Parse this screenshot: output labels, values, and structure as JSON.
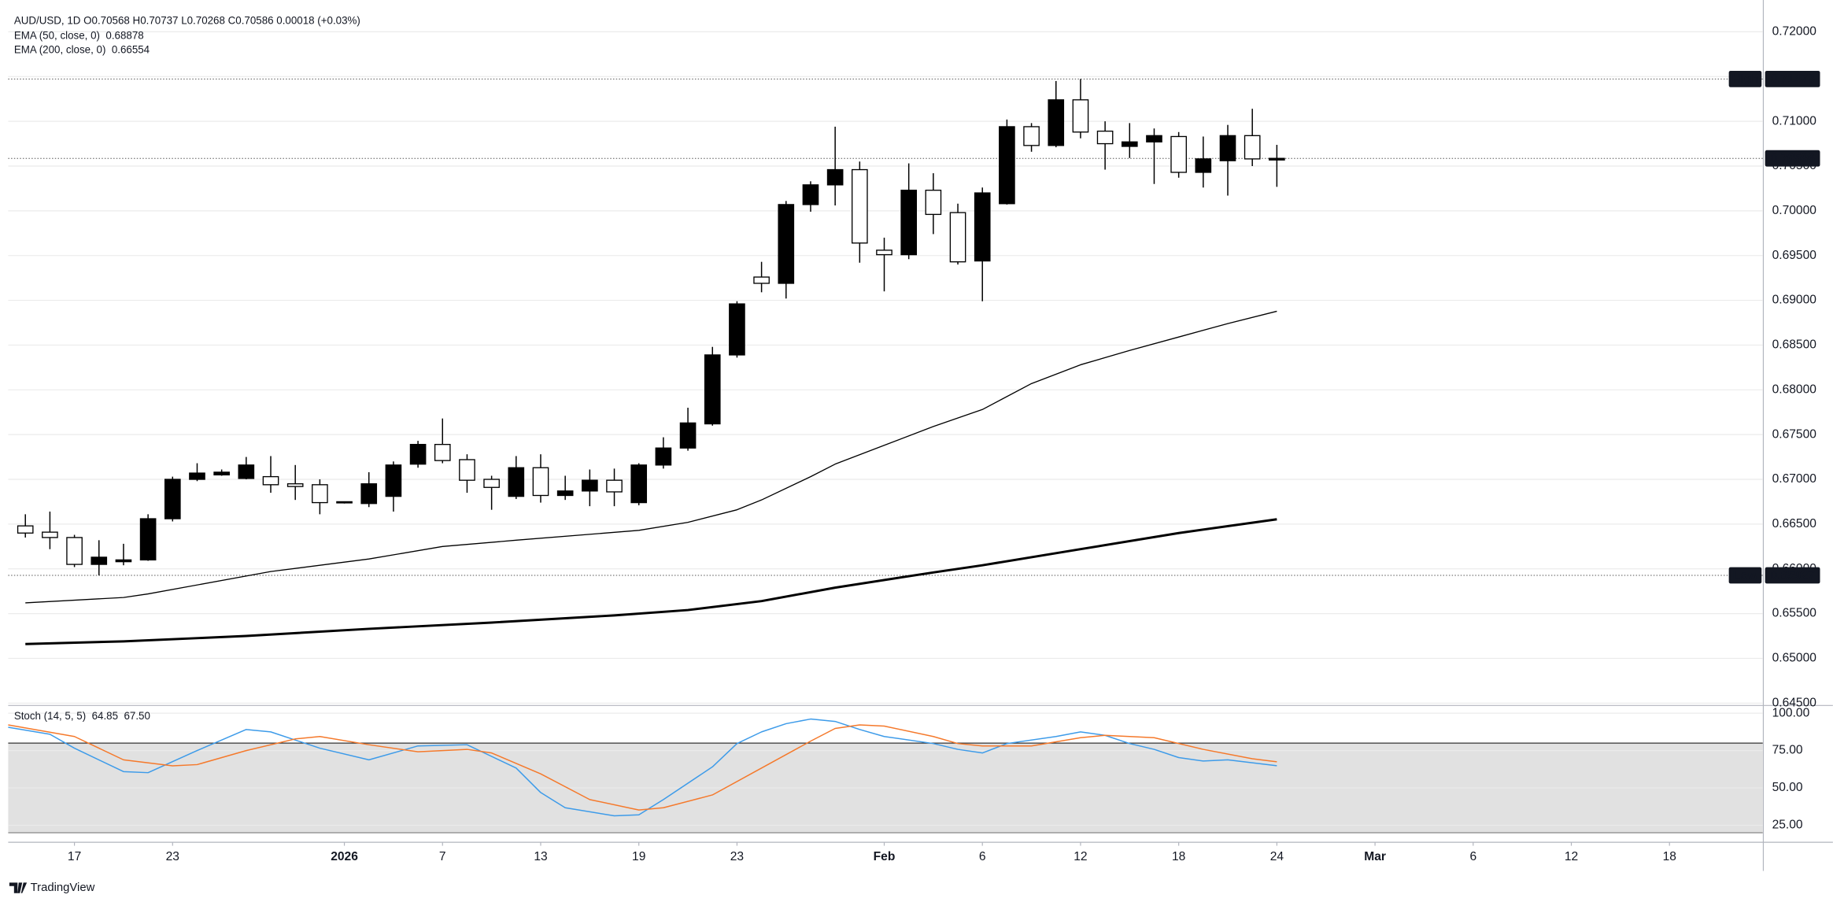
{
  "chart_data": [
    {
      "type": "candlestick",
      "header": "AUD/USD, 1D  O0.70568  H0.70737  L0.70268  C0.70586  0.00018 (+0.03%)",
      "open": [
        0.6648,
        0.6641,
        0.6635,
        0.6605,
        0.6608,
        0.661,
        0.6656,
        0.67,
        0.6705,
        0.6701,
        0.6703,
        0.6695,
        0.6694,
        0.6674,
        0.6673,
        0.6681,
        0.6717,
        0.6739,
        0.6722,
        0.67,
        0.6681,
        0.6713,
        0.6682,
        0.6687,
        0.6699,
        0.6674,
        0.6716,
        0.6735,
        0.6762,
        0.6839,
        0.6926,
        0.6919,
        0.7007,
        0.7029,
        0.7046,
        0.6956,
        0.6951,
        0.7023,
        0.6998,
        0.6944,
        0.7008,
        0.7094,
        0.7073,
        0.7124,
        0.7089,
        0.7072,
        0.7077,
        0.7083,
        0.7043,
        0.7056,
        0.7084,
        0.70568
      ],
      "high": [
        0.6661,
        0.6664,
        0.6638,
        0.6632,
        0.6628,
        0.6661,
        0.6703,
        0.6718,
        0.6711,
        0.6725,
        0.6726,
        0.6716,
        0.67,
        0.6675,
        0.6708,
        0.672,
        0.6743,
        0.6768,
        0.6728,
        0.6704,
        0.6726,
        0.6728,
        0.6704,
        0.6711,
        0.6712,
        0.6718,
        0.6747,
        0.678,
        0.6848,
        0.6899,
        0.6943,
        0.7011,
        0.7033,
        0.7094,
        0.7055,
        0.697,
        0.7053,
        0.7042,
        0.7008,
        0.7026,
        0.7102,
        0.7098,
        0.7145,
        0.71473,
        0.71,
        0.7098,
        0.7092,
        0.7088,
        0.7083,
        0.7096,
        0.7114,
        0.70737
      ],
      "low": [
        0.6635,
        0.6622,
        0.6602,
        0.65927,
        0.6604,
        0.6609,
        0.6653,
        0.6698,
        0.6704,
        0.67,
        0.6685,
        0.6677,
        0.6661,
        0.6673,
        0.6669,
        0.6664,
        0.6713,
        0.6718,
        0.6685,
        0.6666,
        0.6678,
        0.6674,
        0.6677,
        0.667,
        0.667,
        0.6671,
        0.6712,
        0.6732,
        0.676,
        0.6836,
        0.6909,
        0.6902,
        0.6999,
        0.7006,
        0.6942,
        0.691,
        0.6946,
        0.6974,
        0.694,
        0.6899,
        0.7007,
        0.7066,
        0.7071,
        0.7081,
        0.7046,
        0.7059,
        0.703,
        0.7037,
        0.7026,
        0.7017,
        0.705,
        0.70268
      ],
      "close": [
        0.664,
        0.6635,
        0.6605,
        0.6613,
        0.661,
        0.6656,
        0.67,
        0.6707,
        0.6708,
        0.6716,
        0.6694,
        0.6692,
        0.6674,
        0.6675,
        0.6695,
        0.6716,
        0.6739,
        0.6721,
        0.6699,
        0.6691,
        0.6713,
        0.6682,
        0.6687,
        0.6699,
        0.6686,
        0.6716,
        0.6735,
        0.6763,
        0.6839,
        0.6896,
        0.6919,
        0.7007,
        0.7029,
        0.7046,
        0.6964,
        0.6951,
        0.7023,
        0.6996,
        0.6943,
        0.702,
        0.7094,
        0.7073,
        0.7124,
        0.7088,
        0.7075,
        0.7077,
        0.7084,
        0.7043,
        0.7058,
        0.7084,
        0.7058,
        0.70586
      ],
      "up_color": "#000000",
      "down_color": "#ffffff",
      "xlim": [
        -0.7,
        70.8
      ],
      "ylim": [
        0.6448,
        0.7229
      ],
      "yticks": [
        {
          "value": 0.645,
          "label": "0.64500"
        },
        {
          "value": 0.65,
          "label": "0.65000"
        },
        {
          "value": 0.655,
          "label": "0.65500"
        },
        {
          "value": 0.66,
          "label": "0.66000"
        },
        {
          "value": 0.665,
          "label": "0.66500"
        },
        {
          "value": 0.67,
          "label": "0.67000"
        },
        {
          "value": 0.675,
          "label": "0.67500"
        },
        {
          "value": 0.68,
          "label": "0.68000"
        },
        {
          "value": 0.685,
          "label": "0.68500"
        },
        {
          "value": 0.69,
          "label": "0.69000"
        },
        {
          "value": 0.695,
          "label": "0.69500"
        },
        {
          "value": 0.7,
          "label": "0.70000"
        },
        {
          "value": 0.705,
          "label": "0.70500"
        },
        {
          "value": 0.71,
          "label": "0.71000"
        },
        {
          "value": 0.715,
          "label": "0.71500"
        },
        {
          "value": 0.72,
          "label": "0.72000"
        }
      ],
      "grid": true,
      "overlays": [
        {
          "name": "EMA (50, close, 0)",
          "legend_value": "0.68878",
          "color": "#000000",
          "line_weight": "normal",
          "x": [
            0,
            4,
            5,
            10,
            14,
            17,
            20,
            25,
            27,
            29,
            30,
            32,
            33,
            35,
            37,
            39,
            41,
            43,
            45,
            47,
            49,
            51
          ],
          "values": [
            0.6562,
            0.6568,
            0.6572,
            0.6597,
            0.6611,
            0.6625,
            0.6632,
            0.6643,
            0.6652,
            0.6666,
            0.6677,
            0.6703,
            0.6717,
            0.6738,
            0.6759,
            0.6778,
            0.6807,
            0.6828,
            0.6844,
            0.6859,
            0.6874,
            0.68878
          ]
        },
        {
          "name": "EMA (200, close, 0)",
          "legend_value": "0.66554",
          "color": "#000000",
          "line_weight": "bold",
          "x": [
            0,
            4,
            9,
            14,
            19,
            24,
            27,
            30,
            33,
            37,
            39,
            43,
            47,
            51
          ],
          "values": [
            0.6516,
            0.6519,
            0.6525,
            0.6533,
            0.654,
            0.6548,
            0.6554,
            0.6564,
            0.6579,
            0.6596,
            0.6604,
            0.6622,
            0.664,
            0.66554
          ]
        }
      ],
      "annotations": [
        {
          "label": "High",
          "value": 0.71473
        },
        {
          "label": "Low",
          "value": 0.65927
        }
      ],
      "last_price": {
        "value": 0.70586
      }
    },
    {
      "type": "line",
      "title": "Stoch (14, 5, 5)",
      "xlim": [
        -0.7,
        70.8
      ],
      "ylim": [
        14,
        104
      ],
      "yticks": [
        {
          "value": 100,
          "label": "100.00"
        },
        {
          "value": 75,
          "label": "75.00"
        },
        {
          "value": 50,
          "label": "50.00"
        },
        {
          "value": 25,
          "label": "25.00"
        }
      ],
      "grid": true,
      "bands": [
        20,
        80
      ],
      "band_color": "#e1e1e1",
      "xticks": [
        {
          "value": 2,
          "label": "17"
        },
        {
          "value": 6,
          "label": "23"
        },
        {
          "value": 13,
          "label": "2026"
        },
        {
          "value": 17,
          "label": "7"
        },
        {
          "value": 21,
          "label": "13"
        },
        {
          "value": 25,
          "label": "19"
        },
        {
          "value": 29,
          "label": "23"
        },
        {
          "value": 35,
          "label": "Feb"
        },
        {
          "value": 39,
          "label": "6"
        },
        {
          "value": 43,
          "label": "12"
        },
        {
          "value": 47,
          "label": "18"
        },
        {
          "value": 51,
          "label": "24"
        },
        {
          "value": 55,
          "label": "Mar"
        },
        {
          "value": 59,
          "label": "6"
        },
        {
          "value": 63,
          "label": "12"
        },
        {
          "value": 67,
          "label": "18"
        }
      ],
      "series": [
        {
          "legend_value": "64.85",
          "color": "#3d9be9",
          "x": [
            -0.7,
            1,
            2,
            4,
            5,
            7,
            9,
            10,
            12,
            14,
            16,
            18,
            20,
            21,
            22,
            24,
            25,
            26,
            28,
            29,
            30,
            31,
            32,
            33,
            34,
            35,
            37,
            38,
            39,
            40,
            42,
            43,
            44,
            45,
            46,
            47,
            48,
            49,
            51
          ],
          "values": [
            90.6,
            85.9,
            76.6,
            60.9,
            60.2,
            75.0,
            89.1,
            87.5,
            76.6,
            68.8,
            78.1,
            78.9,
            63.3,
            46.9,
            36.7,
            31.3,
            32.0,
            42.2,
            64.1,
            79.7,
            87.5,
            93.0,
            96.1,
            94.5,
            89.1,
            84.4,
            79.7,
            75.8,
            73.4,
            79.7,
            84.4,
            87.5,
            85.2,
            79.7,
            75.8,
            70.3,
            68.0,
            68.8,
            64.85
          ]
        },
        {
          "legend_value": "67.50",
          "color": "#f5792b",
          "x": [
            -0.7,
            2,
            4,
            6,
            7,
            9,
            11,
            12,
            14,
            16,
            18,
            19,
            21,
            23,
            25,
            26,
            28,
            30,
            32,
            33,
            34,
            35,
            37,
            38,
            39,
            41,
            43,
            44,
            46,
            48,
            50,
            51
          ],
          "values": [
            92.2,
            84.4,
            68.8,
            64.8,
            65.6,
            75.0,
            82.8,
            84.4,
            78.9,
            74.2,
            75.8,
            73.4,
            59.4,
            42.2,
            35.2,
            36.7,
            45.3,
            63.3,
            81.3,
            89.8,
            92.2,
            91.4,
            84.4,
            79.7,
            78.1,
            78.1,
            83.6,
            85.2,
            83.6,
            75.8,
            69.5,
            67.5
          ]
        }
      ]
    }
  ],
  "watermark": "TradingView"
}
